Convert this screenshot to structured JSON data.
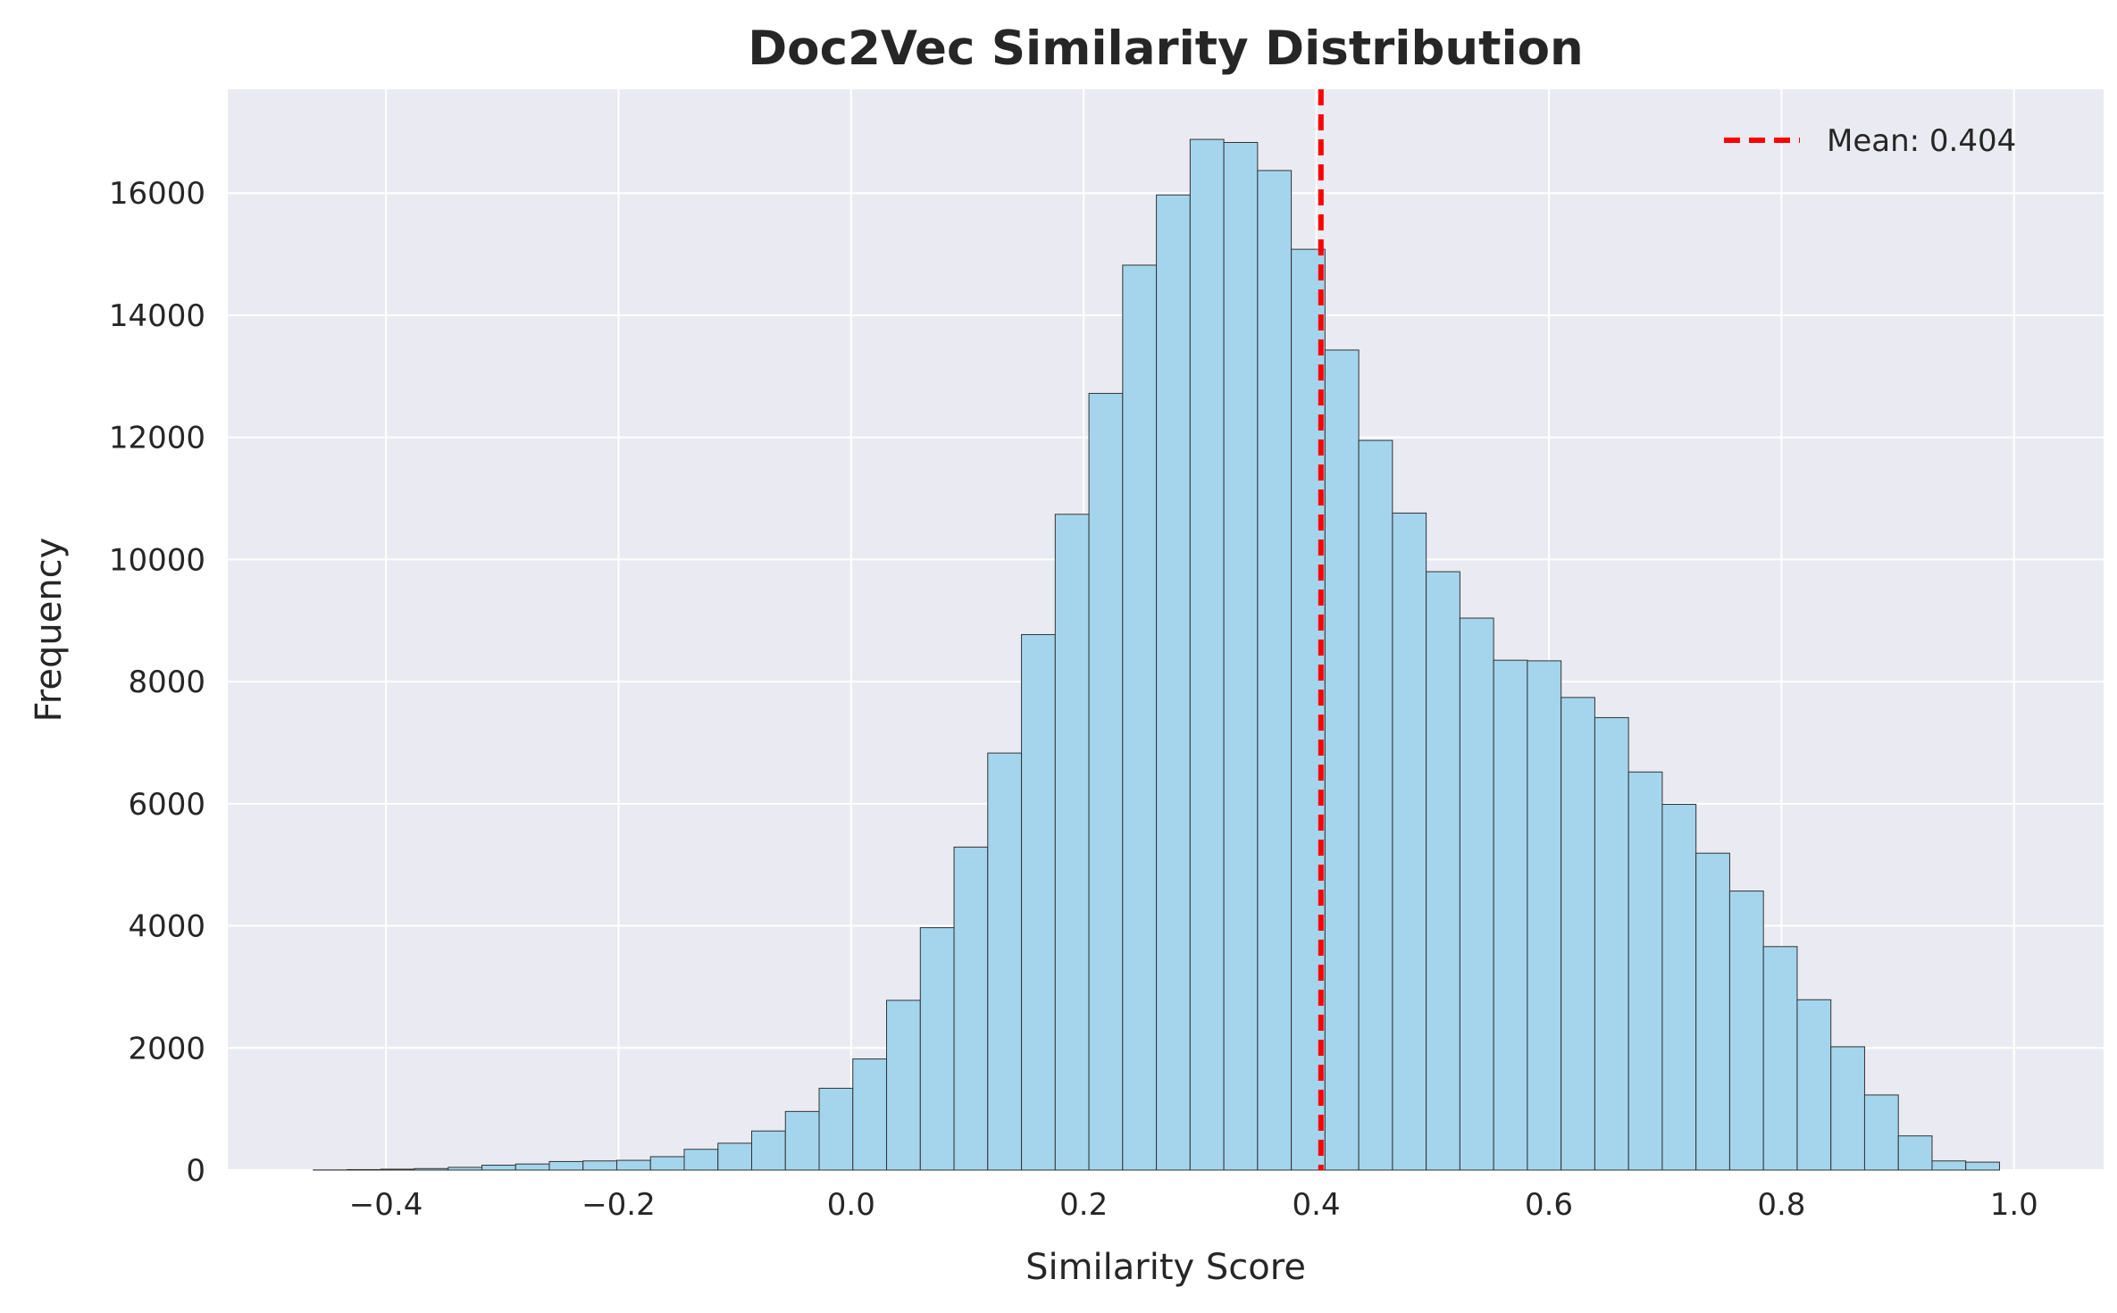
{
  "chart_data": {
    "type": "bar",
    "title": "Doc2Vec Similarity Distribution",
    "xlabel": "Similarity Score",
    "ylabel": "Frequency",
    "xlim": [
      -0.536,
      1.077
    ],
    "ylim": [
      0,
      17700
    ],
    "xticks": [
      -0.4,
      -0.2,
      0.0,
      0.2,
      0.4,
      0.6,
      0.8,
      1.0
    ],
    "xtick_labels": [
      "−0.4",
      "−0.2",
      "0.0",
      "0.2",
      "0.4",
      "0.6",
      "0.8",
      "1.0"
    ],
    "yticks": [
      0,
      2000,
      4000,
      6000,
      8000,
      10000,
      12000,
      14000,
      16000
    ],
    "ytick_labels": [
      "0",
      "2000",
      "4000",
      "6000",
      "8000",
      "10000",
      "12000",
      "14000",
      "16000"
    ],
    "grid": true,
    "legend_placement": "top-right",
    "bin_edges": [
      -0.4625,
      -0.4335,
      -0.4045,
      -0.3755,
      -0.3465,
      -0.3175,
      -0.2885,
      -0.2595,
      -0.2305,
      -0.2015,
      -0.1725,
      -0.1435,
      -0.1145,
      -0.0855,
      -0.0565,
      -0.0275,
      0.0015,
      0.0305,
      0.0595,
      0.0885,
      0.1175,
      0.1465,
      0.1755,
      0.2045,
      0.2335,
      0.2625,
      0.2915,
      0.3205,
      0.3495,
      0.3785,
      0.4075,
      0.4365,
      0.4655,
      0.4945,
      0.5235,
      0.5525,
      0.5815,
      0.6105,
      0.6395,
      0.6685,
      0.6975,
      0.7265,
      0.7555,
      0.7845,
      0.8135,
      0.8425,
      0.8715,
      0.9005,
      0.9295,
      0.9585,
      0.9875
    ],
    "values": [
      3,
      8,
      15,
      25,
      45,
      80,
      100,
      140,
      150,
      160,
      220,
      340,
      440,
      640,
      960,
      1340,
      1820,
      2780,
      3970,
      5290,
      6830,
      8770,
      10740,
      12720,
      14820,
      15970,
      16880,
      16830,
      16370,
      15080,
      13430,
      11950,
      10760,
      9800,
      9040,
      8350,
      8340,
      7740,
      7410,
      6520,
      5990,
      5190,
      4570,
      3660,
      2790,
      2020,
      1230,
      560,
      150,
      130
    ],
    "bar_fill": "#a4d5ed",
    "bar_edge": "#333333",
    "background": "#eaeaf2",
    "mean_line": {
      "x": 0.404,
      "label": "Mean: 0.404",
      "color": "#ff0000",
      "style": "dashed"
    }
  }
}
